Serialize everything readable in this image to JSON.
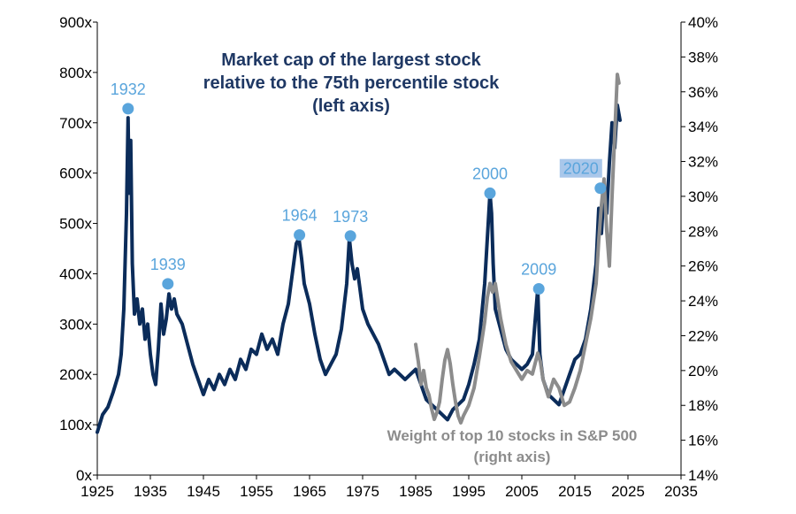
{
  "chart_data": {
    "type": "line",
    "title_lines": [
      "Market cap of the largest stock",
      "relative to the 75th percentile stock",
      "(left axis)"
    ],
    "legend_lines": [
      "Weight of top 10 stocks in S&P 500",
      "(right axis)"
    ],
    "x_ticks": [
      "1925",
      "1935",
      "1945",
      "1955",
      "1965",
      "1975",
      "1985",
      "1995",
      "2005",
      "2015",
      "2025",
      "2035"
    ],
    "y_left_ticks": [
      "0x",
      "100x",
      "200x",
      "300x",
      "400x",
      "500x",
      "600x",
      "700x",
      "800x",
      "900x"
    ],
    "y_right_ticks": [
      "14%",
      "16%",
      "18%",
      "20%",
      "22%",
      "24%",
      "26%",
      "28%",
      "30%",
      "32%",
      "34%",
      "36%",
      "38%",
      "40%"
    ],
    "xlim": [
      1925,
      2035
    ],
    "ylim_left": [
      0,
      900
    ],
    "ylim_right": [
      14,
      40
    ],
    "colors": {
      "left_series": "#0b2c5a",
      "right_series": "#8c8c8c",
      "annotation": "#5aa5dc",
      "title": "#1f3864"
    },
    "series": [
      {
        "name": "Market cap of the largest stock relative to the 75th percentile stock",
        "axis": "left",
        "points": [
          [
            1925.0,
            85
          ],
          [
            1926.0,
            120
          ],
          [
            1927.0,
            135
          ],
          [
            1928.0,
            165
          ],
          [
            1929.0,
            200
          ],
          [
            1929.5,
            240
          ],
          [
            1930.0,
            330
          ],
          [
            1930.5,
            520
          ],
          [
            1930.8,
            710
          ],
          [
            1931.0,
            560
          ],
          [
            1931.3,
            665
          ],
          [
            1931.6,
            420
          ],
          [
            1932.0,
            320
          ],
          [
            1932.5,
            350
          ],
          [
            1933.0,
            300
          ],
          [
            1933.5,
            330
          ],
          [
            1934.0,
            270
          ],
          [
            1934.5,
            300
          ],
          [
            1935.0,
            240
          ],
          [
            1935.5,
            200
          ],
          [
            1936.0,
            180
          ],
          [
            1936.5,
            250
          ],
          [
            1937.0,
            340
          ],
          [
            1937.5,
            280
          ],
          [
            1938.0,
            310
          ],
          [
            1938.5,
            360
          ],
          [
            1939.0,
            330
          ],
          [
            1939.5,
            350
          ],
          [
            1940.0,
            320
          ],
          [
            1941.0,
            300
          ],
          [
            1942.0,
            260
          ],
          [
            1943.0,
            220
          ],
          [
            1944.0,
            190
          ],
          [
            1945.0,
            160
          ],
          [
            1946.0,
            190
          ],
          [
            1947.0,
            170
          ],
          [
            1948.0,
            200
          ],
          [
            1949.0,
            180
          ],
          [
            1950.0,
            210
          ],
          [
            1951.0,
            190
          ],
          [
            1952.0,
            230
          ],
          [
            1953.0,
            210
          ],
          [
            1954.0,
            250
          ],
          [
            1955.0,
            240
          ],
          [
            1956.0,
            280
          ],
          [
            1957.0,
            250
          ],
          [
            1958.0,
            270
          ],
          [
            1959.0,
            240
          ],
          [
            1960.0,
            300
          ],
          [
            1961.0,
            340
          ],
          [
            1962.0,
            420
          ],
          [
            1962.5,
            460
          ],
          [
            1963.0,
            470
          ],
          [
            1963.5,
            430
          ],
          [
            1964.0,
            380
          ],
          [
            1965.0,
            340
          ],
          [
            1966.0,
            280
          ],
          [
            1967.0,
            230
          ],
          [
            1968.0,
            200
          ],
          [
            1969.0,
            220
          ],
          [
            1970.0,
            240
          ],
          [
            1971.0,
            290
          ],
          [
            1972.0,
            380
          ],
          [
            1972.5,
            470
          ],
          [
            1973.0,
            420
          ],
          [
            1973.5,
            390
          ],
          [
            1974.0,
            410
          ],
          [
            1974.5,
            370
          ],
          [
            1975.0,
            330
          ],
          [
            1976.0,
            300
          ],
          [
            1977.0,
            280
          ],
          [
            1978.0,
            260
          ],
          [
            1979.0,
            230
          ],
          [
            1980.0,
            200
          ],
          [
            1981.0,
            210
          ],
          [
            1982.0,
            200
          ],
          [
            1983.0,
            190
          ],
          [
            1984.0,
            200
          ],
          [
            1985.0,
            210
          ],
          [
            1986.0,
            180
          ],
          [
            1987.0,
            150
          ],
          [
            1988.0,
            140
          ],
          [
            1989.0,
            130
          ],
          [
            1990.0,
            120
          ],
          [
            1991.0,
            110
          ],
          [
            1992.0,
            130
          ],
          [
            1993.0,
            140
          ],
          [
            1994.0,
            150
          ],
          [
            1995.0,
            180
          ],
          [
            1996.0,
            220
          ],
          [
            1997.0,
            270
          ],
          [
            1998.0,
            380
          ],
          [
            1998.5,
            470
          ],
          [
            1999.0,
            560
          ],
          [
            1999.3,
            520
          ],
          [
            1999.6,
            420
          ],
          [
            2000.0,
            330
          ],
          [
            2001.0,
            290
          ],
          [
            2002.0,
            250
          ],
          [
            2003.0,
            230
          ],
          [
            2004.0,
            220
          ],
          [
            2005.0,
            210
          ],
          [
            2006.0,
            220
          ],
          [
            2007.0,
            240
          ],
          [
            2008.0,
            370
          ],
          [
            2008.4,
            240
          ],
          [
            2009.0,
            190
          ],
          [
            2010.0,
            160
          ],
          [
            2011.0,
            150
          ],
          [
            2012.0,
            140
          ],
          [
            2013.0,
            170
          ],
          [
            2014.0,
            200
          ],
          [
            2015.0,
            230
          ],
          [
            2016.0,
            240
          ],
          [
            2017.0,
            270
          ],
          [
            2018.0,
            330
          ],
          [
            2019.0,
            420
          ],
          [
            2019.5,
            530
          ],
          [
            2020.0,
            480
          ],
          [
            2020.5,
            570
          ],
          [
            2021.0,
            520
          ],
          [
            2021.5,
            620
          ],
          [
            2022.0,
            700
          ],
          [
            2022.5,
            650
          ],
          [
            2023.0,
            735
          ],
          [
            2023.5,
            705
          ]
        ]
      },
      {
        "name": "Weight of top 10 stocks in S&P 500",
        "axis": "right",
        "points": [
          [
            1985.0,
            21.5
          ],
          [
            1985.5,
            20.5
          ],
          [
            1986.0,
            19.2
          ],
          [
            1986.5,
            20.0
          ],
          [
            1987.0,
            19.0
          ],
          [
            1987.5,
            18.6
          ],
          [
            1988.0,
            17.8
          ],
          [
            1988.5,
            17.2
          ],
          [
            1989.0,
            17.6
          ],
          [
            1989.5,
            18.2
          ],
          [
            1990.0,
            19.5
          ],
          [
            1990.5,
            20.6
          ],
          [
            1991.0,
            21.2
          ],
          [
            1991.5,
            20.4
          ],
          [
            1992.0,
            19.2
          ],
          [
            1992.5,
            18.2
          ],
          [
            1993.0,
            17.4
          ],
          [
            1993.5,
            17.0
          ],
          [
            1994.0,
            17.4
          ],
          [
            1995.0,
            18.0
          ],
          [
            1996.0,
            19.0
          ],
          [
            1997.0,
            20.8
          ],
          [
            1998.0,
            22.8
          ],
          [
            1998.5,
            24.2
          ],
          [
            1999.0,
            25.0
          ],
          [
            1999.5,
            24.5
          ],
          [
            2000.0,
            25.0
          ],
          [
            2000.5,
            24.0
          ],
          [
            2001.0,
            23.0
          ],
          [
            2002.0,
            21.5
          ],
          [
            2003.0,
            20.5
          ],
          [
            2004.0,
            20.0
          ],
          [
            2005.0,
            19.5
          ],
          [
            2006.0,
            20.0
          ],
          [
            2007.0,
            19.8
          ],
          [
            2008.0,
            21.0
          ],
          [
            2008.5,
            20.5
          ],
          [
            2009.0,
            19.5
          ],
          [
            2010.0,
            18.5
          ],
          [
            2011.0,
            19.5
          ],
          [
            2012.0,
            19.0
          ],
          [
            2013.0,
            18.0
          ],
          [
            2014.0,
            18.2
          ],
          [
            2015.0,
            19.0
          ],
          [
            2016.0,
            20.0
          ],
          [
            2017.0,
            21.5
          ],
          [
            2018.0,
            23.0
          ],
          [
            2019.0,
            25.0
          ],
          [
            2019.5,
            27.5
          ],
          [
            2020.0,
            29.5
          ],
          [
            2020.5,
            31.0
          ],
          [
            2021.0,
            28.0
          ],
          [
            2021.5,
            26.0
          ],
          [
            2022.0,
            30.0
          ],
          [
            2022.5,
            33.5
          ],
          [
            2023.0,
            37.0
          ],
          [
            2023.3,
            36.5
          ]
        ]
      }
    ],
    "annotations": [
      {
        "label": "1932",
        "year": 1930.8,
        "value": 728
      },
      {
        "label": "1939",
        "year": 1938.3,
        "value": 380
      },
      {
        "label": "1964",
        "year": 1963.1,
        "value": 477
      },
      {
        "label": "1973",
        "year": 1972.7,
        "value": 475
      },
      {
        "label": "2000",
        "year": 1999.0,
        "value": 560
      },
      {
        "label": "2009",
        "year": 2008.2,
        "value": 370
      },
      {
        "label": "2020",
        "year": 2019.8,
        "value": 570,
        "highlighted": true
      }
    ]
  }
}
